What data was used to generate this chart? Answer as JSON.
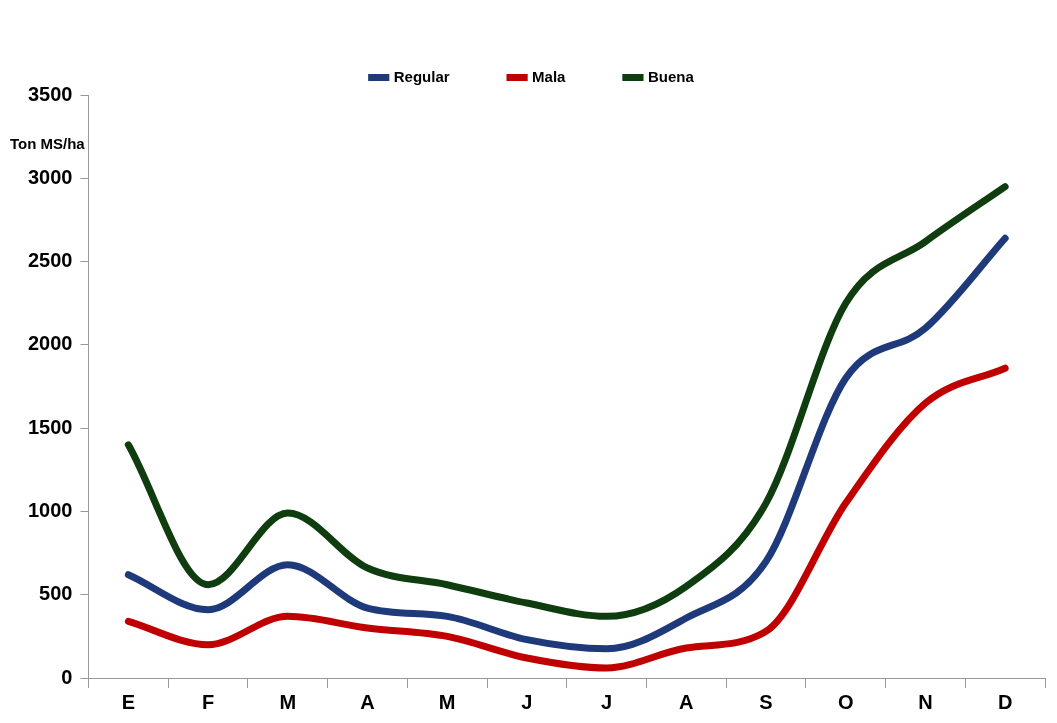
{
  "chart_data": {
    "type": "line",
    "ylabel": "Ton MS/ha",
    "categories": [
      "E",
      "F",
      "M",
      "A",
      "M",
      "J",
      "J",
      "A",
      "S",
      "O",
      "N",
      "D"
    ],
    "series": [
      {
        "name": "Regular",
        "color": "#1f3a7a",
        "values": [
          620,
          410,
          680,
          420,
          370,
          230,
          175,
          360,
          700,
          1800,
          2100,
          2640
        ]
      },
      {
        "name": "Mala",
        "color": "#c00000",
        "values": [
          340,
          200,
          370,
          300,
          250,
          120,
          60,
          180,
          280,
          1050,
          1650,
          1860
        ]
      },
      {
        "name": "Buena",
        "color": "#0f3d0f",
        "values": [
          1400,
          560,
          990,
          660,
          560,
          450,
          370,
          550,
          1050,
          2250,
          2620,
          2950
        ]
      }
    ],
    "ylim": [
      0,
      3500
    ],
    "yticks": [
      0,
      500,
      1000,
      1500,
      2000,
      2500,
      3000,
      3500
    ],
    "grid": false,
    "legend": "top left",
    "marker": "none",
    "line_style": "solid"
  }
}
